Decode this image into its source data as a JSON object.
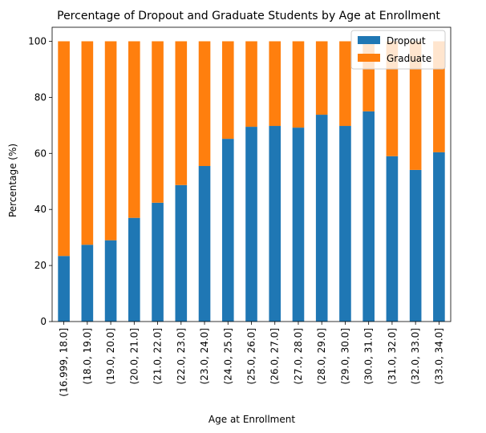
{
  "chart_data": {
    "type": "bar",
    "stacked": true,
    "title": "Percentage of Dropout and Graduate Students by Age at Enrollment",
    "xlabel": "Age at Enrollment",
    "ylabel": "Percentage (%)",
    "ylim": [
      0,
      105
    ],
    "yticks": [
      0,
      20,
      40,
      60,
      80,
      100
    ],
    "grid": false,
    "legend_position": "top-right",
    "categories": [
      "(16.999, 18.0]",
      "(18.0, 19.0]",
      "(19.0, 20.0]",
      "(20.0, 21.0]",
      "(21.0, 22.0]",
      "(22.0, 23.0]",
      "(23.0, 24.0]",
      "(24.0, 25.0]",
      "(25.0, 26.0]",
      "(26.0, 27.0]",
      "(27.0, 28.0]",
      "(28.0, 29.0]",
      "(29.0, 30.0]",
      "(30.0, 31.0]",
      "(31.0, 32.0]",
      "(32.0, 33.0]",
      "(33.0, 34.0]"
    ],
    "series": [
      {
        "name": "Dropout",
        "color": "#1f77b4",
        "values": [
          23.4,
          27.4,
          29.0,
          37.0,
          42.4,
          48.7,
          55.5,
          65.2,
          69.5,
          69.8,
          69.2,
          73.8,
          69.8,
          75.0,
          59.0,
          54.1,
          60.4
        ]
      },
      {
        "name": "Graduate",
        "color": "#ff7f0e",
        "values": [
          76.6,
          72.6,
          71.0,
          63.0,
          57.6,
          51.3,
          44.5,
          34.8,
          30.5,
          30.2,
          30.8,
          26.2,
          30.2,
          25.0,
          41.0,
          45.9,
          39.6
        ]
      }
    ]
  }
}
